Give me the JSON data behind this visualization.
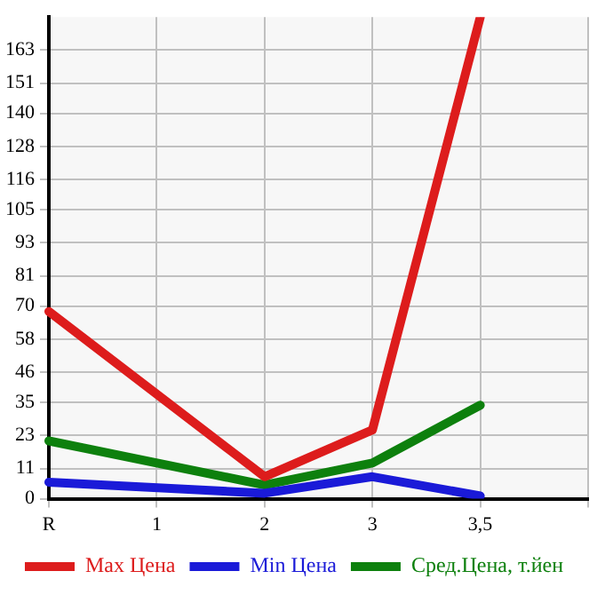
{
  "chart_data": {
    "type": "line",
    "categories": [
      "R",
      "1",
      "2",
      "3",
      "3,5",
      null
    ],
    "series": [
      {
        "name": "Max Цена",
        "color": "#dd1c1c",
        "values": [
          68,
          null,
          8,
          25,
          175,
          null
        ]
      },
      {
        "name": "Min Цена",
        "color": "#1a1ad8",
        "values": [
          6,
          null,
          2,
          8,
          1,
          null
        ]
      },
      {
        "name": "Сред.Цена, т.йен",
        "color": "#0d800d",
        "values": [
          21,
          null,
          5,
          13,
          34,
          null
        ]
      }
    ],
    "ylim": [
      0,
      175
    ],
    "yticks": [
      0,
      11,
      23,
      35,
      46,
      58,
      70,
      81,
      93,
      105,
      116,
      128,
      140,
      151,
      163
    ],
    "grid": true,
    "legend": "bottom",
    "marker": "none",
    "line_style": "solid"
  }
}
